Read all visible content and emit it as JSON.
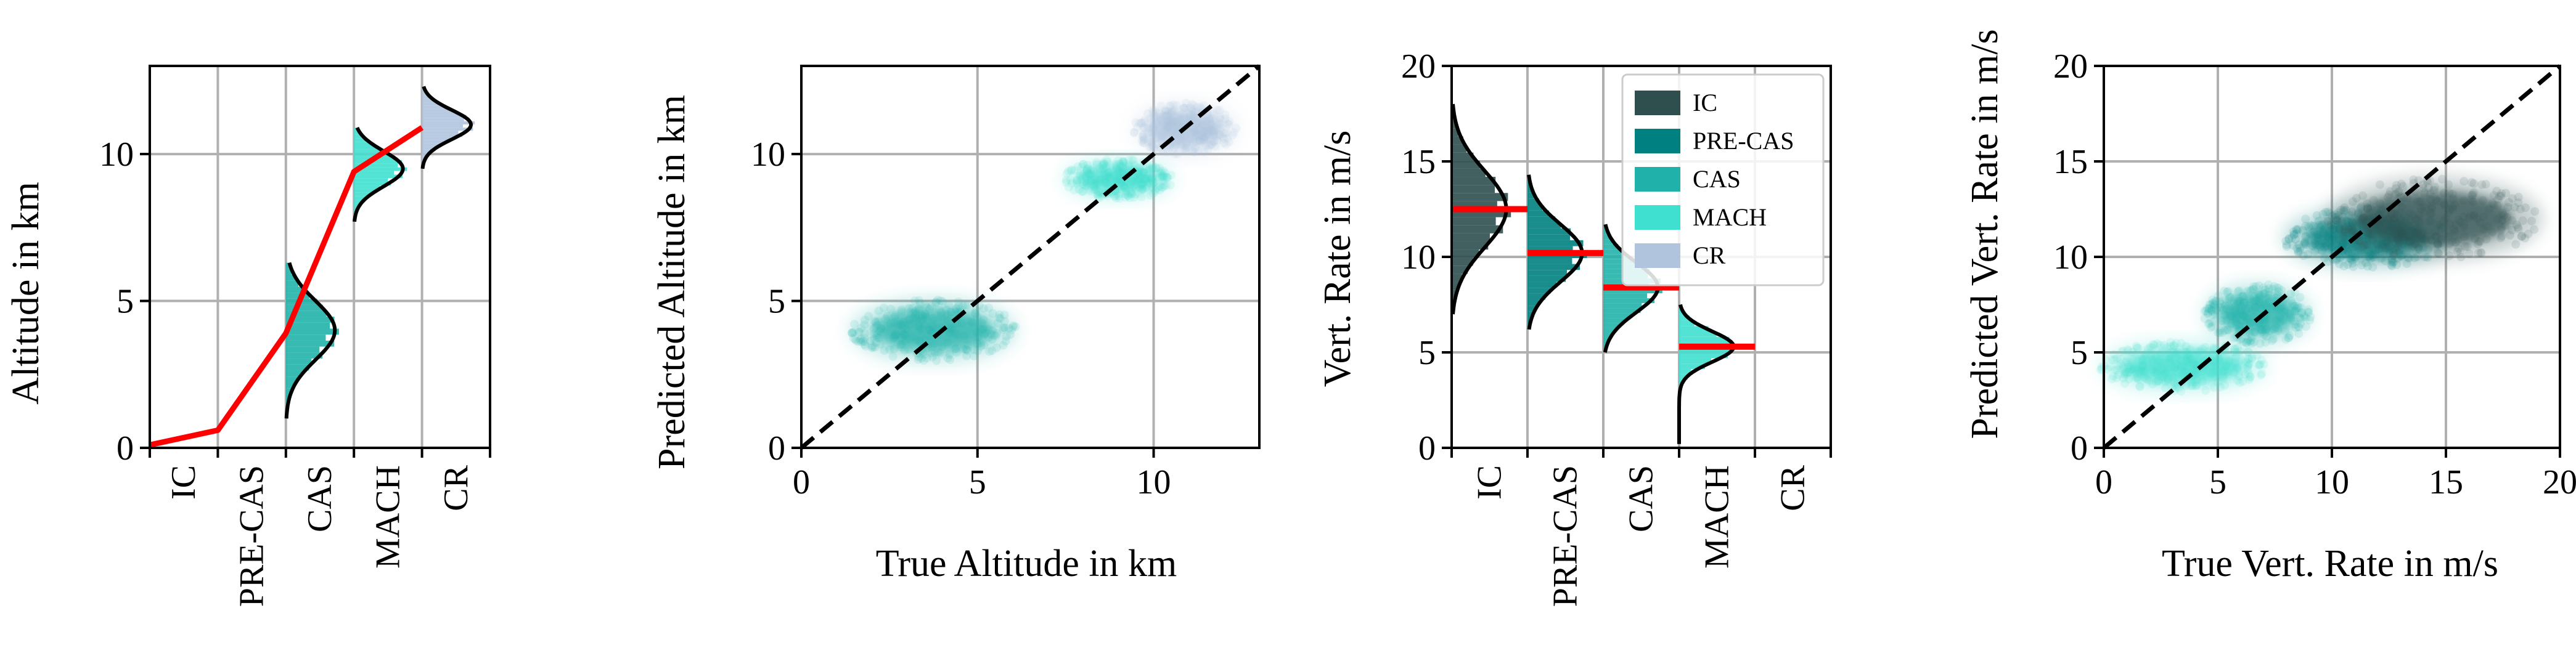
{
  "colors": {
    "IC": "#2f4f4f",
    "PRE-CAS": "#008080",
    "CAS": "#20b2aa",
    "MACH": "#40e0d0",
    "CR": "#b0c4de",
    "mean_line": "#ff0000",
    "density_curve": "#000000",
    "diagonal": "#000000",
    "grid": "#b0b0b0"
  },
  "chart_data": [
    {
      "type": "line",
      "ylabel": "Altitude in km",
      "xlabel": "",
      "categories": [
        "IC",
        "PRE-CAS",
        "CAS",
        "MACH",
        "CR"
      ],
      "yticks": [
        0,
        5,
        10
      ],
      "ylim": [
        0,
        13
      ],
      "grid": true,
      "mean_line": {
        "x": [
          "IC",
          "PRE-CAS",
          "CAS",
          "MACH",
          "CR"
        ],
        "values": [
          0.1,
          0.6,
          3.9,
          9.4,
          10.9
        ]
      },
      "distributions": [
        {
          "phase": "CAS",
          "mean": 4.0,
          "std": 1.0,
          "range": [
            1.0,
            6.3
          ]
        },
        {
          "phase": "MACH",
          "mean": 9.5,
          "std": 0.6,
          "range": [
            7.7,
            10.9
          ]
        },
        {
          "phase": "CR",
          "mean": 11.0,
          "std": 0.5,
          "range": [
            9.5,
            12.3
          ]
        }
      ]
    },
    {
      "type": "scatter",
      "xlabel": "True Altitude in km",
      "ylabel": "Predicted Altitude in km",
      "xticks": [
        0,
        5,
        10
      ],
      "yticks": [
        0,
        5,
        10
      ],
      "xlim": [
        0,
        13
      ],
      "ylim": [
        0,
        13
      ],
      "grid": true,
      "diagonal": true,
      "clusters": [
        {
          "phase": "CAS",
          "x_range": [
            1.5,
            6.0
          ],
          "y_range": [
            3.0,
            5.0
          ]
        },
        {
          "phase": "MACH",
          "x_range": [
            7.5,
            10.5
          ],
          "y_range": [
            8.5,
            9.8
          ]
        },
        {
          "phase": "CR",
          "x_range": [
            9.5,
            12.3
          ],
          "y_range": [
            10.0,
            11.7
          ]
        }
      ]
    },
    {
      "type": "bar",
      "ylabel": "Vert. Rate in m/s",
      "xlabel": "",
      "categories": [
        "IC",
        "PRE-CAS",
        "CAS",
        "MACH",
        "CR"
      ],
      "yticks": [
        0,
        5,
        10,
        15,
        20
      ],
      "ylim": [
        0,
        20
      ],
      "grid": true,
      "legend": {
        "position": "top-right",
        "entries": [
          "IC",
          "PRE-CAS",
          "CAS",
          "MACH",
          "CR"
        ]
      },
      "mean_values": [
        {
          "phase": "IC",
          "value": 12.5
        },
        {
          "phase": "PRE-CAS",
          "value": 10.2
        },
        {
          "phase": "CAS",
          "value": 8.4
        },
        {
          "phase": "MACH",
          "value": 5.3
        }
      ],
      "distributions": [
        {
          "phase": "IC",
          "mean": 12.5,
          "std": 2.0,
          "range": [
            7.0,
            18.0
          ]
        },
        {
          "phase": "PRE-CAS",
          "mean": 10.2,
          "std": 1.5,
          "range": [
            6.2,
            14.3
          ]
        },
        {
          "phase": "CAS",
          "mean": 8.4,
          "std": 1.3,
          "range": [
            5.0,
            11.7
          ]
        },
        {
          "phase": "MACH",
          "mean": 5.3,
          "std": 0.8,
          "range": [
            0.2,
            7.5
          ]
        }
      ]
    },
    {
      "type": "scatter",
      "xlabel": "True Vert. Rate in m/s",
      "ylabel": "Predicted Vert. Rate in m/s",
      "xticks": [
        0,
        5,
        10,
        15,
        20
      ],
      "yticks": [
        0,
        5,
        10,
        15,
        20
      ],
      "xlim": [
        0,
        20
      ],
      "ylim": [
        0,
        20
      ],
      "grid": true,
      "diagonal": true,
      "clusters": [
        {
          "phase": "MACH",
          "x_range": [
            0.0,
            7.0
          ],
          "y_range": [
            3.0,
            5.5
          ]
        },
        {
          "phase": "CAS",
          "x_range": [
            4.5,
            9.0
          ],
          "y_range": [
            5.5,
            8.5
          ]
        },
        {
          "phase": "PRE-CAS",
          "x_range": [
            8.0,
            15.0
          ],
          "y_range": [
            9.5,
            12.5
          ]
        },
        {
          "phase": "IC",
          "x_range": [
            10.0,
            19.0
          ],
          "y_range": [
            10.0,
            14.0
          ]
        }
      ]
    }
  ]
}
